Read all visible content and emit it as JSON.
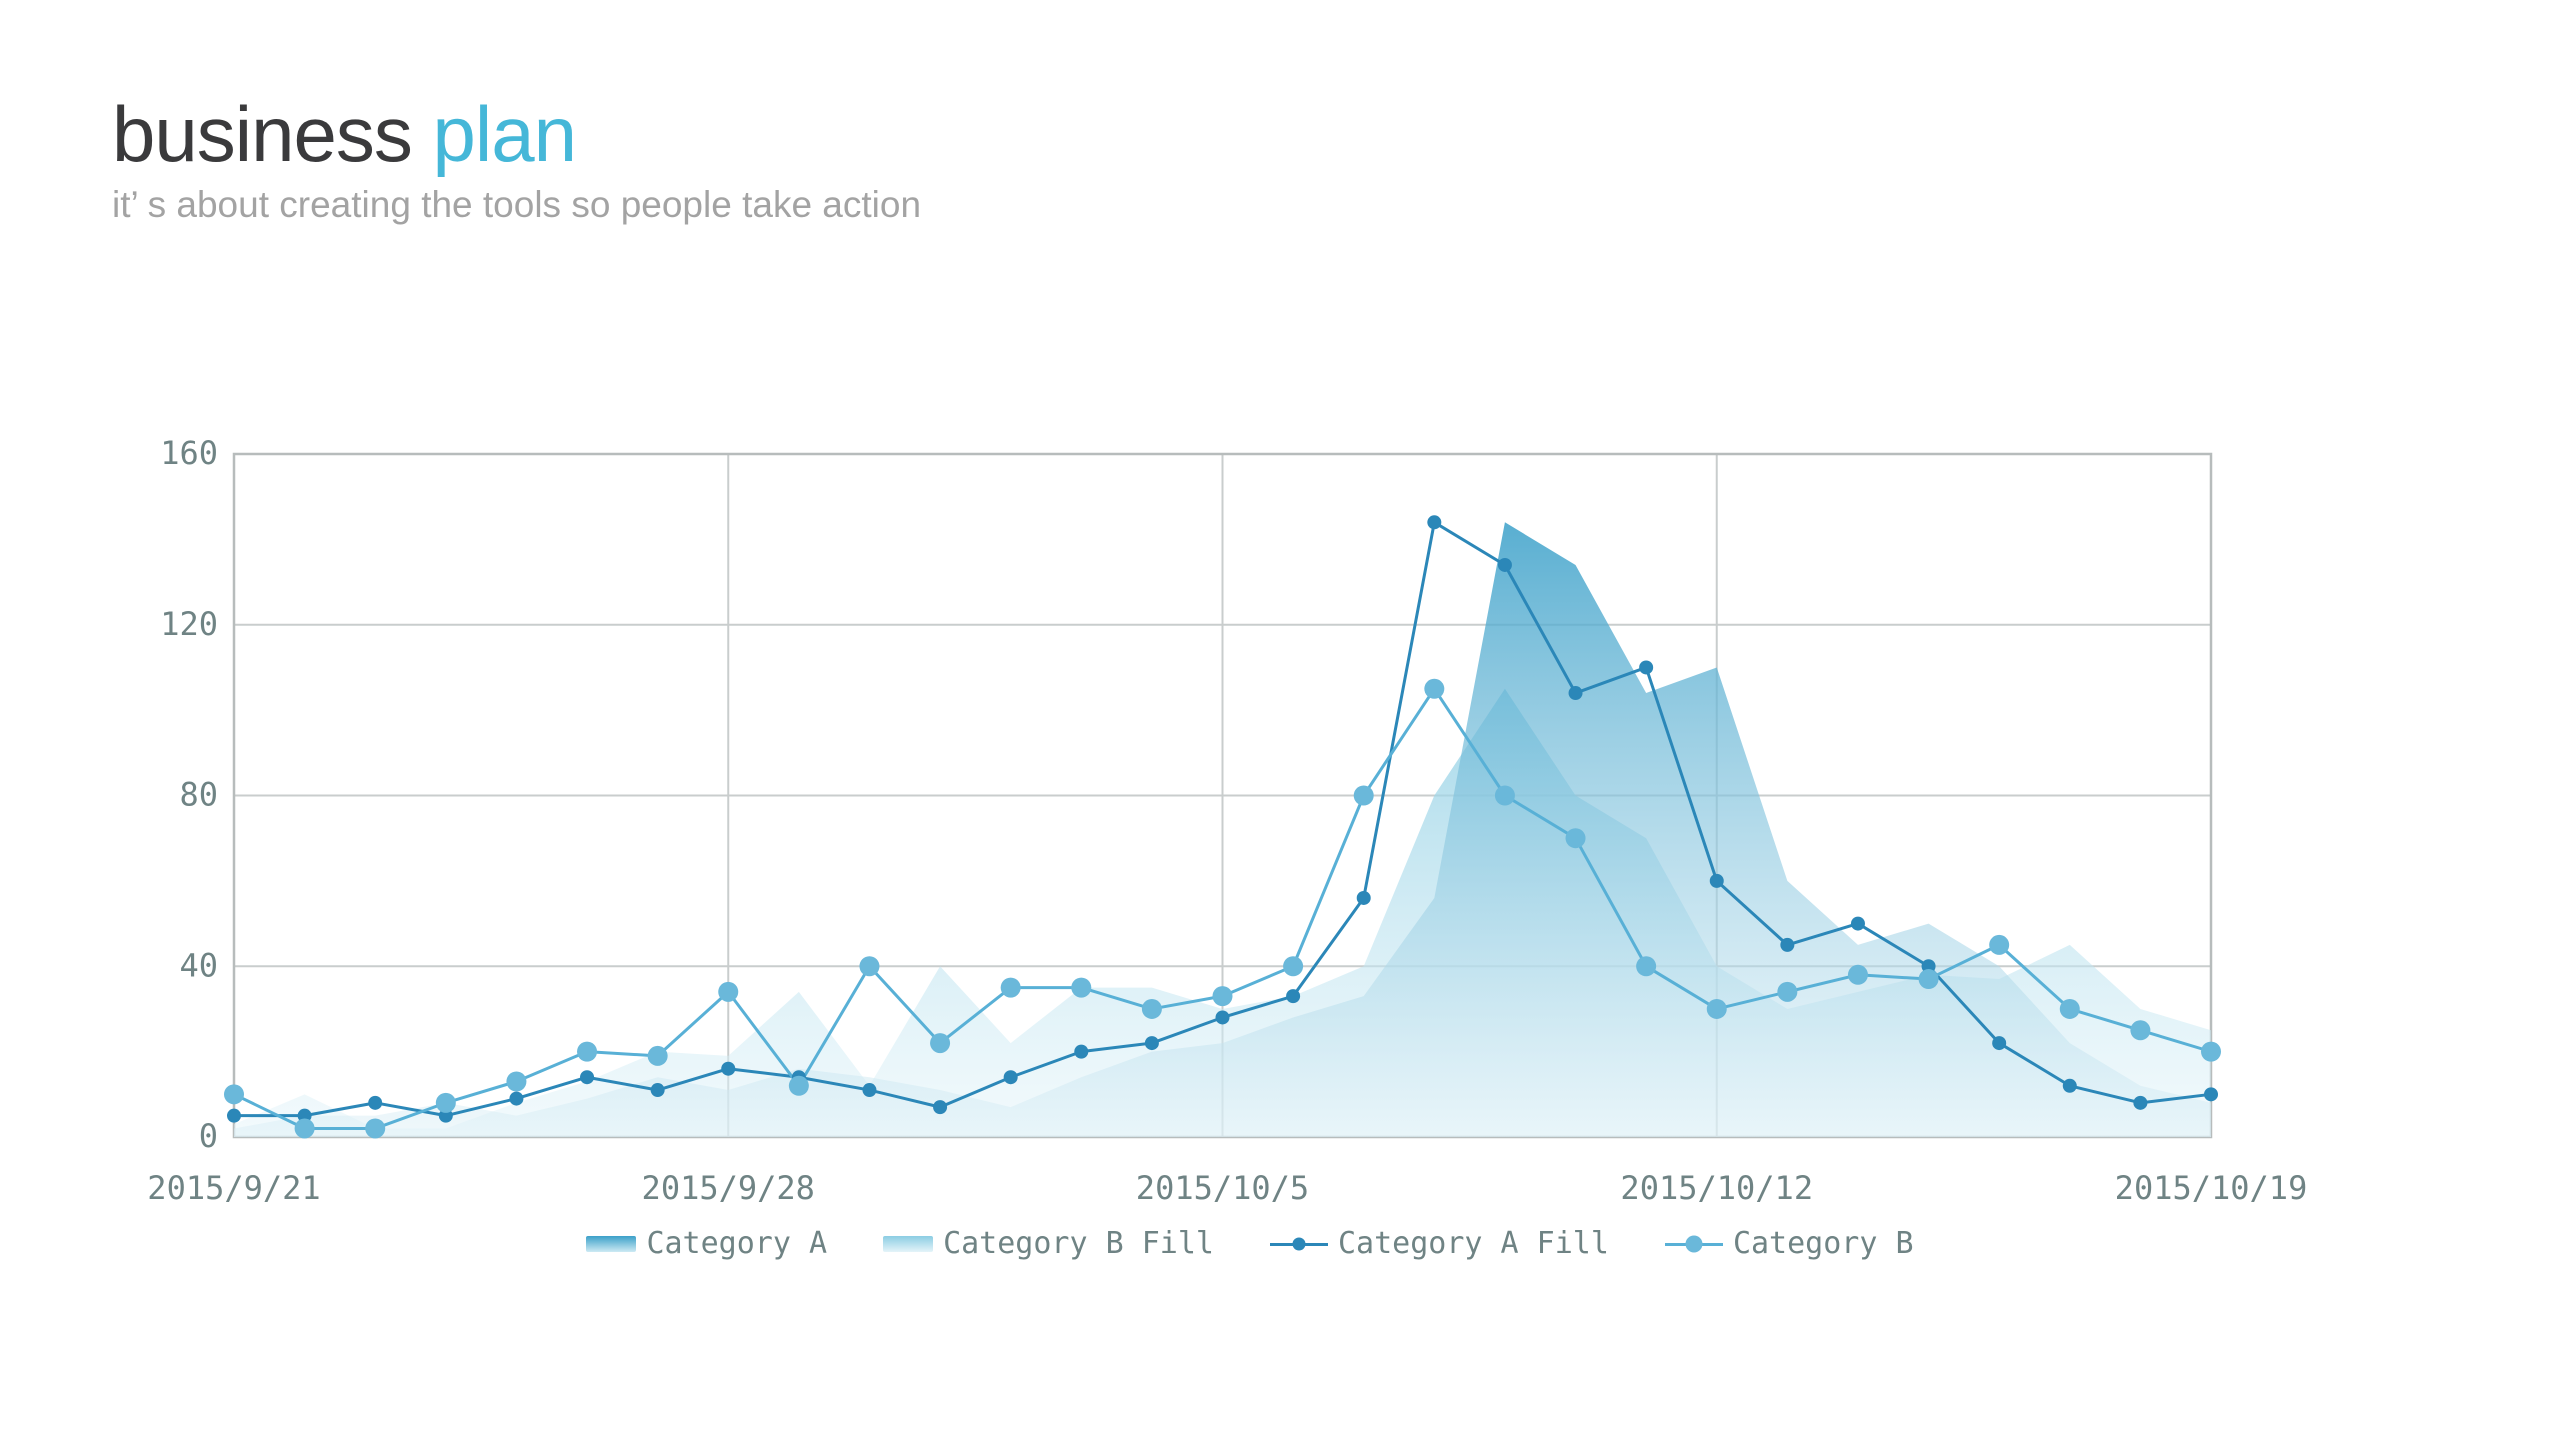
{
  "header": {
    "title_primary": "business",
    "title_accent": "plan",
    "subtitle": "it’ s about creating the tools so people take action"
  },
  "colors": {
    "title_primary": "#3a3a3c",
    "title_accent": "#45b7d8",
    "subtitle": "#a3a3a3",
    "axis_text": "#6f8384",
    "grid_line": "#c9cdcd",
    "plot_border": "#b7bcbc",
    "line_a": "#2b87b8",
    "line_b": "#58b0d6",
    "marker_a": "#2b87b8",
    "marker_b": "#6ab8da",
    "area_a_top": "#3ba0c9",
    "area_a_bottom": "#dceff6",
    "area_b_top": "#8bcde3",
    "area_b_bottom": "#e4f4f9"
  },
  "chart_data": {
    "type": "area",
    "title": "",
    "xlabel": "",
    "ylabel": "",
    "ylim": [
      0,
      160
    ],
    "yticks": [
      0,
      40,
      80,
      120,
      160
    ],
    "grid": true,
    "legend_position": "bottom",
    "x_tick_labels": [
      "2015/9/21",
      "2015/9/28",
      "2015/10/5",
      "2015/10/12",
      "2015/10/19"
    ],
    "x_tick_day_index": [
      0,
      7,
      14,
      21,
      28
    ],
    "x_daily_count": 29,
    "series": [
      {
        "name": "Category A",
        "type": "area",
        "palette": "a",
        "values": [
          2,
          5,
          5,
          8,
          5,
          9,
          14,
          11,
          16,
          14,
          11,
          7,
          14,
          20,
          22,
          28,
          33,
          56,
          144,
          134,
          104,
          110,
          60,
          45,
          50,
          40,
          22,
          12,
          8
        ]
      },
      {
        "name": "Category B Fill",
        "type": "area",
        "palette": "b",
        "values": [
          3,
          10,
          2,
          2,
          8,
          13,
          20,
          19,
          34,
          12,
          40,
          22,
          35,
          35,
          30,
          33,
          40,
          80,
          105,
          80,
          70,
          40,
          30,
          34,
          38,
          37,
          45,
          30,
          25
        ]
      },
      {
        "name": "Category A Fill",
        "type": "line",
        "palette": "a",
        "values": [
          5,
          5,
          8,
          5,
          9,
          14,
          11,
          16,
          14,
          11,
          7,
          14,
          20,
          22,
          28,
          33,
          56,
          144,
          134,
          104,
          110,
          60,
          45,
          50,
          40,
          22,
          12,
          8,
          10
        ]
      },
      {
        "name": "Category B",
        "type": "line",
        "palette": "b",
        "values": [
          10,
          2,
          2,
          8,
          13,
          20,
          19,
          34,
          12,
          40,
          22,
          35,
          35,
          30,
          33,
          40,
          80,
          105,
          80,
          70,
          40,
          30,
          34,
          38,
          37,
          45,
          30,
          25,
          20
        ]
      }
    ],
    "legend": [
      {
        "label": "Category A",
        "swatch": "area-a"
      },
      {
        "label": "Category B Fill",
        "swatch": "area-b"
      },
      {
        "label": "Category A Fill",
        "swatch": "line-a"
      },
      {
        "label": "Category B",
        "swatch": "line-b"
      }
    ]
  }
}
